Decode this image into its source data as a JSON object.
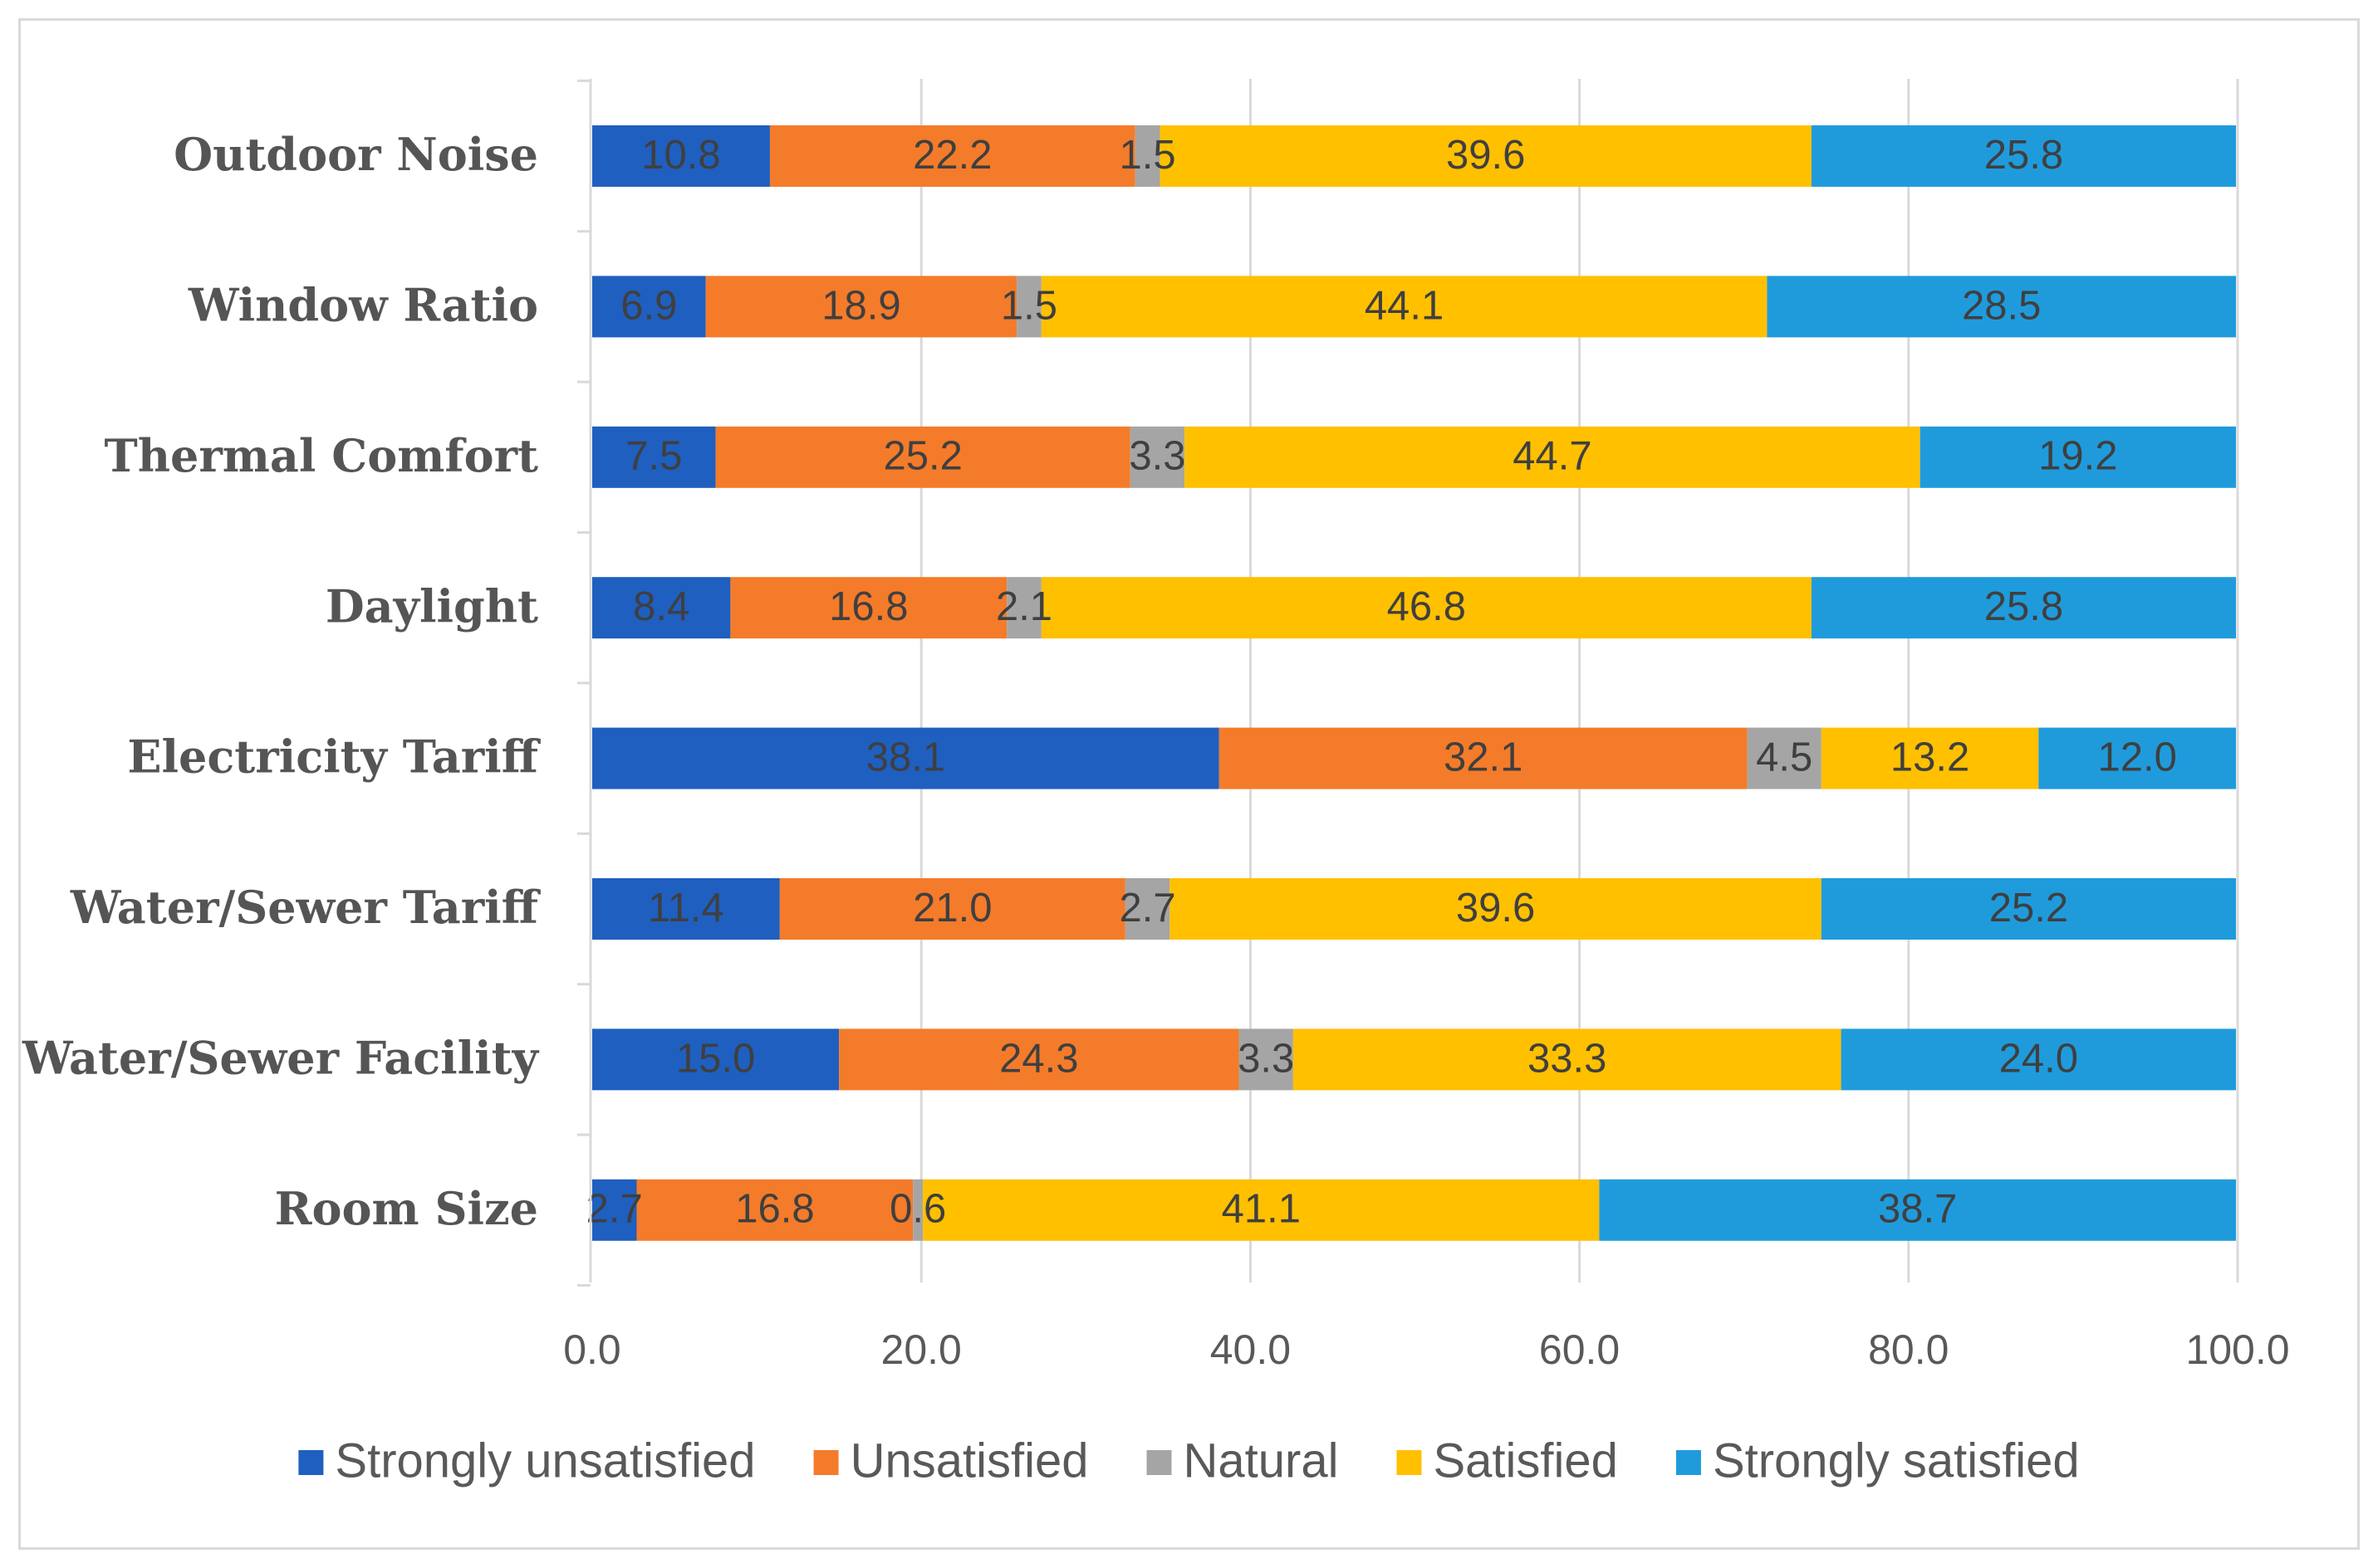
{
  "chart_data": {
    "type": "bar",
    "orientation": "horizontal",
    "stacked": true,
    "categories": [
      "Outdoor Noise",
      "Window Ratio",
      "Thermal Comfort",
      "Daylight",
      "Electricity Tariff",
      "Water/Sewer Tariff",
      "Water/Sewer Facility",
      "Room Size"
    ],
    "series": [
      {
        "name": "Strongly unsatisfied",
        "color": "#1f5fbf",
        "values": [
          10.8,
          6.9,
          7.5,
          8.4,
          38.1,
          11.4,
          15.0,
          2.7
        ],
        "labels": [
          "10.8",
          "6.9",
          "7.5",
          "8.4",
          "38.1",
          "11.4",
          "15.0",
          "2.7"
        ]
      },
      {
        "name": "Unsatisfied",
        "color": "#f47b2a",
        "values": [
          22.2,
          18.9,
          25.2,
          16.8,
          32.1,
          21.0,
          24.3,
          16.8
        ],
        "labels": [
          "22.2",
          "18.9",
          "25.2",
          "16.8",
          "32.1",
          "21.0",
          "24.3",
          "16.8"
        ]
      },
      {
        "name": "Natural",
        "color": "#a5a5a5",
        "values": [
          1.5,
          1.5,
          3.3,
          2.1,
          4.5,
          2.7,
          3.3,
          0.6
        ],
        "labels": [
          "1.5",
          "1.5",
          "3.3",
          "2.1",
          "4.5",
          "2.7",
          "3.3",
          "0.6"
        ]
      },
      {
        "name": "Satisfied",
        "color": "#ffc000",
        "values": [
          39.6,
          44.1,
          44.7,
          46.8,
          13.2,
          39.6,
          33.3,
          41.1
        ],
        "labels": [
          "39.6",
          "44.1",
          "44.7",
          "46.8",
          "13.2",
          "39.6",
          "33.3",
          "41.1"
        ]
      },
      {
        "name": "Strongly satisfied",
        "color": "#1f9bdc",
        "values": [
          25.8,
          28.5,
          19.2,
          25.8,
          12.0,
          25.2,
          24.0,
          38.7
        ],
        "labels": [
          "25.8",
          "28.5",
          "19.2",
          "25.8",
          "12.0",
          "25.2",
          "24.0",
          "38.7"
        ]
      }
    ],
    "x_ticks": [
      "0.0",
      "20.0",
      "40.0",
      "60.0",
      "80.0",
      "100.0"
    ],
    "xlim": [
      0,
      100
    ],
    "grid": true,
    "legend": "bottom",
    "title": "",
    "xlabel": "",
    "ylabel": ""
  }
}
